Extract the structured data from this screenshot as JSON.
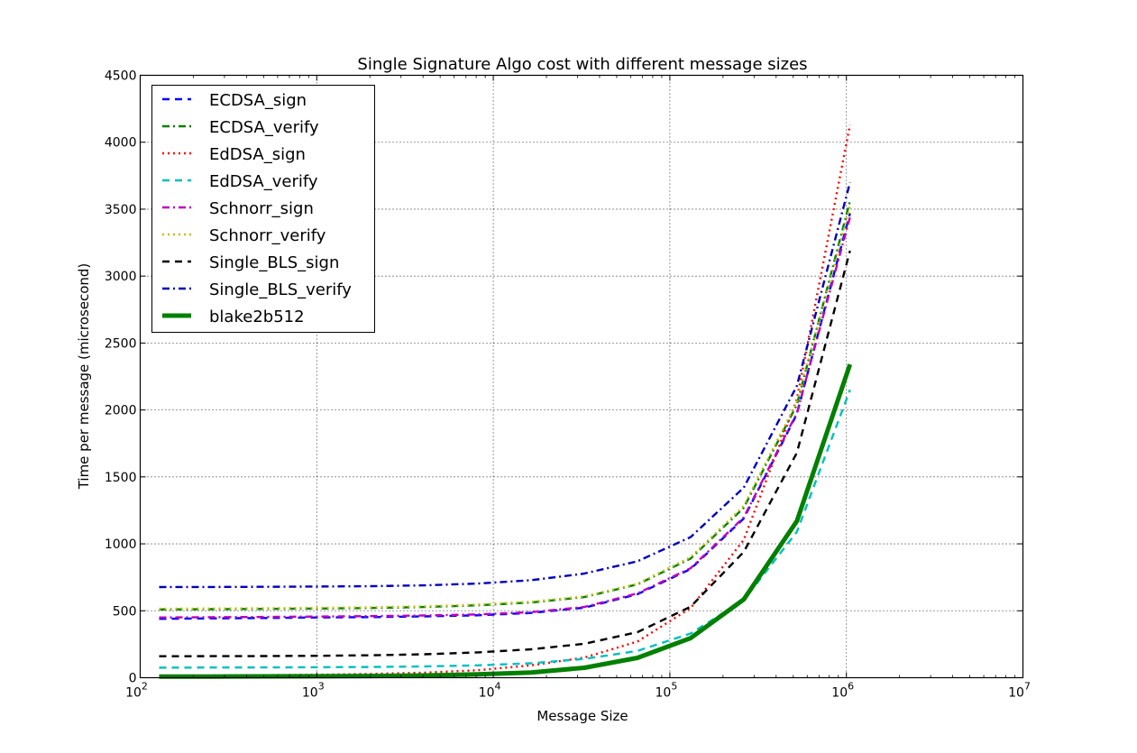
{
  "chart_data": {
    "type": "line",
    "title": "Single Signature Algo cost with different message sizes",
    "xlabel": "Message Size",
    "ylabel": "Time per message (microsecond)",
    "xscale": "log",
    "xlim": [
      100,
      10000000
    ],
    "ylim": [
      0,
      4500
    ],
    "grid": true,
    "legend_position": "top-left",
    "x_ticks": [
      {
        "value": 100,
        "base": "10",
        "exp": "2"
      },
      {
        "value": 1000,
        "base": "10",
        "exp": "3"
      },
      {
        "value": 10000,
        "base": "10",
        "exp": "4"
      },
      {
        "value": 100000,
        "base": "10",
        "exp": "5"
      },
      {
        "value": 1000000,
        "base": "10",
        "exp": "6"
      },
      {
        "value": 10000000,
        "base": "10",
        "exp": "7"
      }
    ],
    "y_ticks": [
      0,
      500,
      1000,
      1500,
      2000,
      2500,
      3000,
      3500,
      4000,
      4500
    ],
    "y_tick_labels": [
      "0",
      "500",
      "1000",
      "1500",
      "2000",
      "2500",
      "3000",
      "3500",
      "4000",
      "4500"
    ],
    "x": [
      128,
      256,
      512,
      1024,
      2048,
      4096,
      8192,
      16384,
      32768,
      65536,
      131072,
      262144,
      524288,
      1048576
    ],
    "series": [
      {
        "name": "ECDSA_sign",
        "color": "#0000ff",
        "style": "dashed",
        "values": [
          440,
          443,
          446,
          450,
          453,
          458,
          466,
          484,
          523,
          624,
          812,
          1190,
          1970,
          3470
        ]
      },
      {
        "name": "ECDSA_verify",
        "color": "#008000",
        "style": "dashdot",
        "values": [
          510,
          512,
          514,
          517,
          521,
          528,
          541,
          562,
          602,
          697,
          890,
          1270,
          2040,
          3560
        ]
      },
      {
        "name": "EdDSA_sign",
        "color": "#ff0000",
        "style": "dotted",
        "values": [
          15,
          17,
          19,
          22,
          28,
          38,
          56,
          92,
          150,
          270,
          520,
          1030,
          2080,
          4130
        ]
      },
      {
        "name": "EdDSA_verify",
        "color": "#00bfbf",
        "style": "dashed",
        "values": [
          75,
          76,
          77,
          78,
          80,
          84,
          92,
          108,
          140,
          200,
          330,
          580,
          1090,
          2150
        ]
      },
      {
        "name": "Schnorr_sign",
        "color": "#bf00bf",
        "style": "dashdot",
        "values": [
          450,
          452,
          454,
          457,
          460,
          465,
          473,
          490,
          528,
          630,
          818,
          1198,
          1978,
          3440
        ]
      },
      {
        "name": "Schnorr_verify",
        "color": "#bfbf00",
        "style": "dotted",
        "values": [
          515,
          517,
          519,
          522,
          526,
          533,
          546,
          567,
          607,
          702,
          900,
          1283,
          2060,
          3520
        ]
      },
      {
        "name": "Single_BLS_sign",
        "color": "#000000",
        "style": "dashed",
        "values": [
          160,
          161,
          162,
          164,
          168,
          175,
          189,
          212,
          253,
          340,
          530,
          940,
          1680,
          3190
        ]
      },
      {
        "name": "Single_BLS_verify",
        "color": "#0000bf",
        "style": "dashdot",
        "values": [
          677,
          678,
          679,
          681,
          684,
          690,
          703,
          728,
          778,
          870,
          1050,
          1420,
          2180,
          3700
        ]
      },
      {
        "name": "blake2b512",
        "color": "#008000",
        "style": "solid",
        "values": [
          8,
          9,
          10,
          11,
          13,
          17,
          25,
          39,
          74,
          148,
          296,
          585,
          1170,
          2340
        ]
      }
    ]
  }
}
